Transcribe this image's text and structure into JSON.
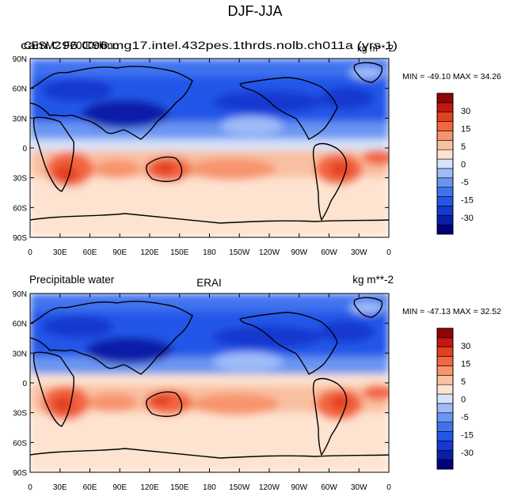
{
  "main_title": "DJF-JJA",
  "colors": {
    "land_line": "#000000",
    "frame": "#000000",
    "background": "#ffffff"
  },
  "chart_data": [
    {
      "type": "heatmap",
      "panel": "top",
      "title_left": "CESM2 F2000climo",
      "title_center": "cam.C96.C96.mg17.intel.432pes.1thrds.nolb.ch011a (yrs 1)",
      "title_right": "kg m**-2",
      "title_overlap_note": "left, center and right titles are overprinted on the same line in the original",
      "min_max_label": "MIN = -49.10  MAX =  34.26",
      "min": -49.1,
      "max": 34.26,
      "xlim": [
        0,
        360
      ],
      "ylim": [
        -90,
        90
      ],
      "x_ticks": [
        "0",
        "30E",
        "60E",
        "90E",
        "120E",
        "150E",
        "180",
        "150W",
        "120W",
        "90W",
        "60W",
        "30W",
        "0"
      ],
      "y_ticks": [
        "90N",
        "60N",
        "30N",
        "0",
        "30S",
        "60S",
        "90S"
      ],
      "field_description": "DJF minus JJA precipitable water difference; strongly negative over northern continents and the northern tropics, strongly positive over southern Africa, northern Australia and South America."
    },
    {
      "type": "heatmap",
      "panel": "bottom",
      "title_left": "Precipitable water",
      "title_center": "ERAI",
      "title_right": "kg m**-2",
      "min_max_label": "MIN = -47.13  MAX =  32.52",
      "min": -47.13,
      "max": 32.52,
      "xlim": [
        0,
        360
      ],
      "ylim": [
        -90,
        90
      ],
      "x_ticks": [
        "0",
        "30E",
        "60E",
        "90E",
        "120E",
        "150E",
        "180",
        "150W",
        "120W",
        "90W",
        "60W",
        "30W",
        "0"
      ],
      "y_ticks": [
        "90N",
        "60N",
        "30N",
        "0",
        "30S",
        "60S",
        "90S"
      ],
      "field_description": "Same seasonal difference from ERA-Interim reanalysis with a very similar pattern."
    }
  ],
  "colorbar": {
    "labels": [
      "30",
      "15",
      "5",
      "0",
      "-5",
      "-15",
      "-30"
    ],
    "levels": [
      -40,
      -30,
      -20,
      -15,
      -10,
      -5,
      -2,
      0,
      2,
      5,
      10,
      15,
      20,
      30,
      40
    ],
    "colors": [
      "#00007e",
      "#0a1fa8",
      "#1639cf",
      "#2256e8",
      "#3f73ee",
      "#6a95f2",
      "#9fbcf7",
      "#d6e4fb",
      "#fde3d0",
      "#f9c0a1",
      "#f7946d",
      "#f3663f",
      "#e34020",
      "#c3170f",
      "#8e0606"
    ]
  }
}
